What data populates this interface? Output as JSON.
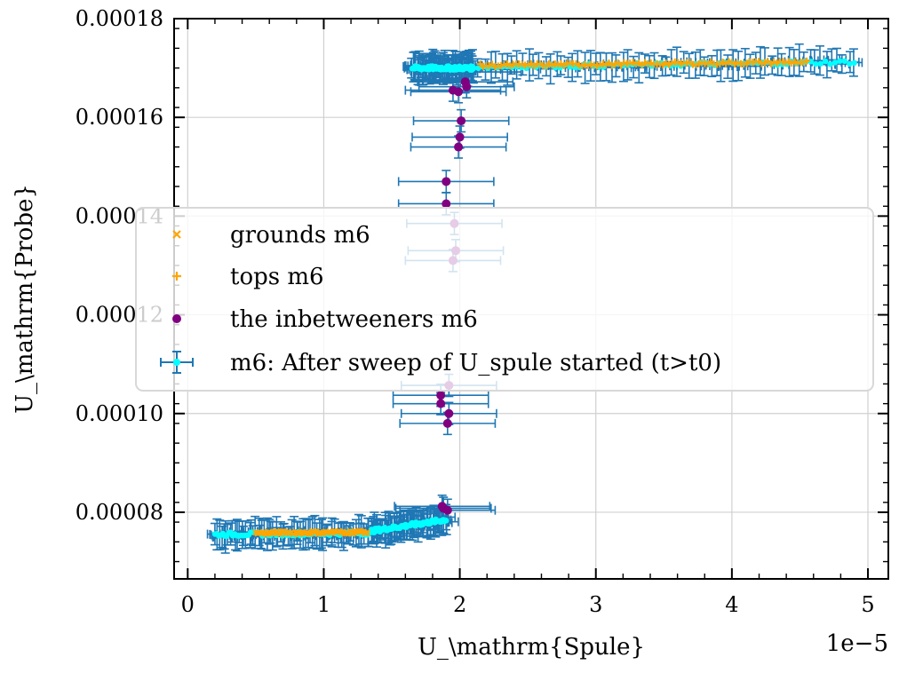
{
  "chart_data": {
    "type": "scatter",
    "xlabel": "U_\\mathrm{Spule}",
    "ylabel": "U_\\mathrm{Probe}",
    "x_offset_label": "1e−5",
    "xlim": [
      -0.1,
      5.15
    ],
    "ylim": [
      6.65e-05,
      0.00018
    ],
    "xticks": [
      0,
      1,
      2,
      3,
      4,
      5
    ],
    "xtick_labels": [
      "0",
      "1",
      "2",
      "3",
      "4",
      "5"
    ],
    "yticks": [
      8e-05,
      0.0001,
      0.00012,
      0.00014,
      0.00016,
      0.00018
    ],
    "ytick_labels": [
      "0.00008",
      "0.00010",
      "0.00012",
      "0.00014",
      "0.00016",
      "0.00018"
    ],
    "grid": true,
    "legend_position": "center-right",
    "x_scale_note": "x values in units of 1e-5",
    "series": [
      {
        "name": "m6: After sweep of U_spule started (t>t0)",
        "marker": "errorbar",
        "color": "#1f77b4",
        "marker_color": "#00ffff",
        "xerr": 0.35,
        "yerr": 3.2e-06,
        "segments": [
          {
            "x_start": 0.2,
            "x_end": 1.35,
            "y_start": 7.55e-05,
            "y_end": 7.58e-05
          },
          {
            "x_start": 1.35,
            "x_end": 1.9,
            "y_start": 7.62e-05,
            "y_end": 7.85e-05
          },
          {
            "x_start": 1.65,
            "x_end": 2.1,
            "y_start": 0.00017,
            "y_end": 0.00017
          },
          {
            "x_start": 2.1,
            "x_end": 4.9,
            "y_start": 0.0001702,
            "y_end": 0.0001712
          }
        ],
        "points": [
          {
            "x": 1.87,
            "y": 8.12e-05
          },
          {
            "x": 1.88,
            "y": 8.08e-05
          },
          {
            "x": 1.91,
            "y": 8.04e-05
          },
          {
            "x": 1.91,
            "y": 9.8e-05
          },
          {
            "x": 1.92,
            "y": 0.0001
          },
          {
            "x": 1.86,
            "y": 0.000102
          },
          {
            "x": 1.86,
            "y": 0.0001037
          },
          {
            "x": 1.92,
            "y": 0.0001057
          },
          {
            "x": 1.95,
            "y": 0.000131
          },
          {
            "x": 1.97,
            "y": 0.000133
          },
          {
            "x": 1.96,
            "y": 0.0001385
          },
          {
            "x": 1.9,
            "y": 0.0001425
          },
          {
            "x": 1.9,
            "y": 0.000147
          },
          {
            "x": 1.99,
            "y": 0.000154
          },
          {
            "x": 2.0,
            "y": 0.000156
          },
          {
            "x": 2.01,
            "y": 0.0001593
          },
          {
            "x": 1.95,
            "y": 0.0001655
          },
          {
            "x": 1.99,
            "y": 0.0001652
          },
          {
            "x": 2.05,
            "y": 0.0001662
          },
          {
            "x": 2.04,
            "y": 0.0001672
          },
          {
            "x": 2.1,
            "y": 0.0001692
          },
          {
            "x": 2.02,
            "y": 0.0001697
          }
        ]
      },
      {
        "name": "grounds m6",
        "marker": "x",
        "color": "#ffa500",
        "segments": [
          {
            "x_start": 0.5,
            "x_end": 1.32,
            "y_start": 7.58e-05,
            "y_end": 7.6e-05
          }
        ]
      },
      {
        "name": "tops m6",
        "marker": "+",
        "color": "#ffa500",
        "segments": [
          {
            "x_start": 2.15,
            "x_end": 4.55,
            "y_start": 0.0001705,
            "y_end": 0.0001712
          }
        ]
      },
      {
        "name": "the inbetweeners m6",
        "marker": "o",
        "color": "#800080",
        "points": [
          {
            "x": 1.87,
            "y": 8.12e-05
          },
          {
            "x": 1.88,
            "y": 8.08e-05
          },
          {
            "x": 1.91,
            "y": 8.04e-05
          },
          {
            "x": 1.91,
            "y": 9.8e-05
          },
          {
            "x": 1.92,
            "y": 0.0001
          },
          {
            "x": 1.86,
            "y": 0.000102
          },
          {
            "x": 1.86,
            "y": 0.0001037
          },
          {
            "x": 1.92,
            "y": 0.0001057
          },
          {
            "x": 1.95,
            "y": 0.000131
          },
          {
            "x": 1.97,
            "y": 0.000133
          },
          {
            "x": 1.96,
            "y": 0.0001385
          },
          {
            "x": 1.9,
            "y": 0.0001425
          },
          {
            "x": 1.9,
            "y": 0.000147
          },
          {
            "x": 1.99,
            "y": 0.000154
          },
          {
            "x": 2.0,
            "y": 0.000156
          },
          {
            "x": 2.01,
            "y": 0.0001593
          },
          {
            "x": 1.95,
            "y": 0.0001655
          },
          {
            "x": 1.99,
            "y": 0.0001652
          },
          {
            "x": 2.05,
            "y": 0.0001662
          },
          {
            "x": 2.04,
            "y": 0.0001672
          }
        ]
      }
    ],
    "legend": [
      {
        "label": "grounds m6",
        "marker": "x",
        "color": "#ffa500"
      },
      {
        "label": "tops m6",
        "marker": "+",
        "color": "#ffa500"
      },
      {
        "label": "the inbetweeners m6",
        "marker": "o",
        "color": "#800080"
      },
      {
        "label": "m6: After sweep of U_spule started (t>t0)",
        "marker": "errorbar",
        "color": "#1f77b4",
        "marker_color": "#00ffff"
      }
    ]
  }
}
